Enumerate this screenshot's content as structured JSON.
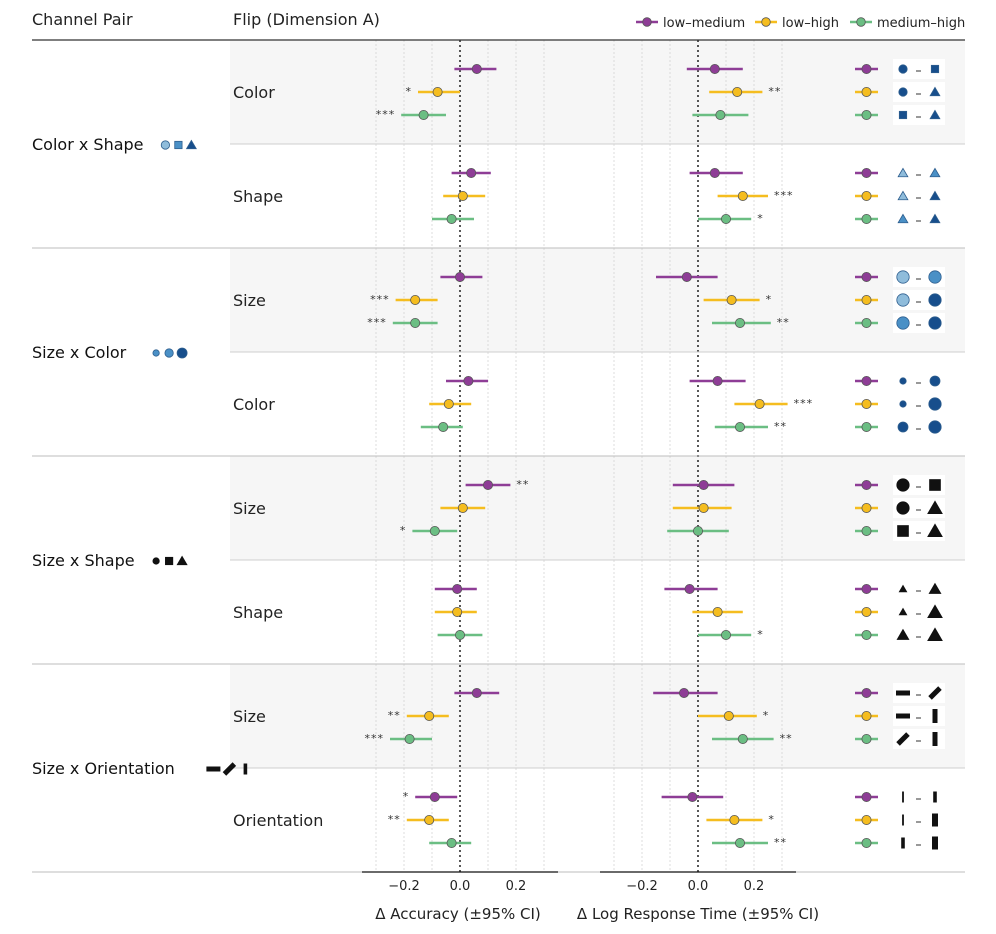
{
  "header": {
    "channel_pair": "Channel Pair",
    "flip": "Flip (Dimension A)"
  },
  "legend": [
    {
      "name": "low–medium",
      "color": "#8E3D96"
    },
    {
      "name": "low–high",
      "color": "#F5BD1F"
    },
    {
      "name": "medium–high",
      "color": "#6BBE83"
    }
  ],
  "colors": {
    "light_blue": "#8FBCDB",
    "mid_blue": "#4A90C6",
    "dark_blue": "#174E8C",
    "panel_bg": "#F6F6F6",
    "grid": "#D4D4D4"
  },
  "chart_data": {
    "type": "forest",
    "series": [
      "low–medium",
      "low–high",
      "medium–high"
    ],
    "axes": {
      "accuracy": {
        "title": "Δ Accuracy (±95% CI)",
        "ticks": [
          -0.2,
          0.0,
          0.2
        ],
        "tick_labels": [
          "−0.2",
          "0.0",
          "0.2"
        ],
        "range": [
          -0.35,
          0.35
        ]
      },
      "rt": {
        "title": "Δ Log Response Time (±95% CI)",
        "ticks": [
          -0.2,
          0.0,
          0.2
        ],
        "tick_labels": [
          "−0.2",
          "0.0",
          "0.2"
        ],
        "range": [
          -0.35,
          0.35
        ]
      }
    },
    "channel_pairs": [
      {
        "name": "Color x Shape",
        "groups": [
          {
            "flip": "Color",
            "rows": [
              {
                "acc": 0.06,
                "acc_ci": [
                  -0.02,
                  0.13
                ],
                "acc_sig": "",
                "rt": 0.06,
                "rt_ci": [
                  -0.04,
                  0.16
                ],
                "rt_sig": "",
                "levels": [
                  "sm-circle-dark",
                  "sm-square-dark"
                ]
              },
              {
                "acc": -0.08,
                "acc_ci": [
                  -0.15,
                  0.0
                ],
                "acc_sig": "*",
                "rt": 0.14,
                "rt_ci": [
                  0.04,
                  0.23
                ],
                "rt_sig": "**",
                "levels": [
                  "sm-circle-dark",
                  "sm-triangle-dark"
                ]
              },
              {
                "acc": -0.13,
                "acc_ci": [
                  -0.21,
                  -0.05
                ],
                "acc_sig": "***",
                "rt": 0.08,
                "rt_ci": [
                  -0.02,
                  0.18
                ],
                "rt_sig": "",
                "levels": [
                  "sm-square-dark",
                  "sm-triangle-dark"
                ]
              }
            ]
          },
          {
            "flip": "Shape",
            "rows": [
              {
                "acc": 0.04,
                "acc_ci": [
                  -0.03,
                  0.11
                ],
                "acc_sig": "",
                "rt": 0.06,
                "rt_ci": [
                  -0.03,
                  0.16
                ],
                "rt_sig": "",
                "levels": [
                  "sm-triangle-light",
                  "sm-triangle-mid"
                ]
              },
              {
                "acc": 0.01,
                "acc_ci": [
                  -0.06,
                  0.09
                ],
                "acc_sig": "",
                "rt": 0.16,
                "rt_ci": [
                  0.07,
                  0.25
                ],
                "rt_sig": "***",
                "levels": [
                  "sm-triangle-light",
                  "sm-triangle-dark"
                ]
              },
              {
                "acc": -0.03,
                "acc_ci": [
                  -0.1,
                  0.05
                ],
                "acc_sig": "",
                "rt": 0.1,
                "rt_ci": [
                  0.0,
                  0.19
                ],
                "rt_sig": "*",
                "levels": [
                  "sm-triangle-mid",
                  "sm-triangle-dark"
                ]
              }
            ]
          }
        ]
      },
      {
        "name": "Size x Color",
        "groups": [
          {
            "flip": "Size",
            "rows": [
              {
                "acc": 0.0,
                "acc_ci": [
                  -0.07,
                  0.08
                ],
                "acc_sig": "",
                "rt": -0.04,
                "rt_ci": [
                  -0.15,
                  0.07
                ],
                "rt_sig": "",
                "levels": [
                  "lg-circle-light",
                  "lg-circle-mid"
                ]
              },
              {
                "acc": -0.16,
                "acc_ci": [
                  -0.23,
                  -0.08
                ],
                "acc_sig": "***",
                "rt": 0.12,
                "rt_ci": [
                  0.02,
                  0.22
                ],
                "rt_sig": "*",
                "levels": [
                  "lg-circle-light",
                  "lg-circle-dark"
                ]
              },
              {
                "acc": -0.16,
                "acc_ci": [
                  -0.24,
                  -0.08
                ],
                "acc_sig": "***",
                "rt": 0.15,
                "rt_ci": [
                  0.05,
                  0.26
                ],
                "rt_sig": "**",
                "levels": [
                  "lg-circle-mid",
                  "lg-circle-dark"
                ]
              }
            ]
          },
          {
            "flip": "Color",
            "rows": [
              {
                "acc": 0.03,
                "acc_ci": [
                  -0.05,
                  0.1
                ],
                "acc_sig": "",
                "rt": 0.07,
                "rt_ci": [
                  -0.03,
                  0.17
                ],
                "rt_sig": "",
                "levels": [
                  "xs-circle-dark",
                  "md-circle-dark"
                ]
              },
              {
                "acc": -0.04,
                "acc_ci": [
                  -0.11,
                  0.04
                ],
                "acc_sig": "",
                "rt": 0.22,
                "rt_ci": [
                  0.13,
                  0.32
                ],
                "rt_sig": "***",
                "levels": [
                  "xs-circle-dark",
                  "lg-circle-dark"
                ]
              },
              {
                "acc": -0.06,
                "acc_ci": [
                  -0.14,
                  0.01
                ],
                "acc_sig": "",
                "rt": 0.15,
                "rt_ci": [
                  0.06,
                  0.25
                ],
                "rt_sig": "**",
                "levels": [
                  "md-circle-dark",
                  "lg-circle-dark"
                ]
              }
            ]
          }
        ]
      },
      {
        "name": "Size x Shape",
        "groups": [
          {
            "flip": "Size",
            "rows": [
              {
                "acc": 0.1,
                "acc_ci": [
                  0.02,
                  0.18
                ],
                "acc_sig": "**",
                "rt": 0.02,
                "rt_ci": [
                  -0.09,
                  0.13
                ],
                "rt_sig": "",
                "levels": [
                  "lg-circle-black",
                  "lg-square-black"
                ]
              },
              {
                "acc": 0.01,
                "acc_ci": [
                  -0.07,
                  0.09
                ],
                "acc_sig": "",
                "rt": 0.02,
                "rt_ci": [
                  -0.09,
                  0.12
                ],
                "rt_sig": "",
                "levels": [
                  "lg-circle-black",
                  "lg-triangle-black"
                ]
              },
              {
                "acc": -0.09,
                "acc_ci": [
                  -0.17,
                  -0.01
                ],
                "acc_sig": "*",
                "rt": 0.0,
                "rt_ci": [
                  -0.11,
                  0.11
                ],
                "rt_sig": "",
                "levels": [
                  "lg-square-black",
                  "lg-triangle-black"
                ]
              }
            ]
          },
          {
            "flip": "Shape",
            "rows": [
              {
                "acc": -0.01,
                "acc_ci": [
                  -0.09,
                  0.06
                ],
                "acc_sig": "",
                "rt": -0.03,
                "rt_ci": [
                  -0.12,
                  0.07
                ],
                "rt_sig": "",
                "levels": [
                  "xs-triangle-black",
                  "md-triangle-black"
                ]
              },
              {
                "acc": -0.01,
                "acc_ci": [
                  -0.09,
                  0.06
                ],
                "acc_sig": "",
                "rt": 0.07,
                "rt_ci": [
                  -0.02,
                  0.16
                ],
                "rt_sig": "",
                "levels": [
                  "xs-triangle-black",
                  "lg-triangle-black"
                ]
              },
              {
                "acc": 0.0,
                "acc_ci": [
                  -0.08,
                  0.08
                ],
                "acc_sig": "",
                "rt": 0.1,
                "rt_ci": [
                  0.0,
                  0.19
                ],
                "rt_sig": "*",
                "levels": [
                  "md-triangle-black",
                  "lg-triangle-black"
                ]
              }
            ]
          }
        ]
      },
      {
        "name": "Size x Orientation",
        "groups": [
          {
            "flip": "Size",
            "rows": [
              {
                "acc": 0.06,
                "acc_ci": [
                  -0.02,
                  0.14
                ],
                "acc_sig": "",
                "rt": -0.05,
                "rt_ci": [
                  -0.16,
                  0.07
                ],
                "rt_sig": "",
                "levels": [
                  "bar-horizontal",
                  "bar-diagonal"
                ]
              },
              {
                "acc": -0.11,
                "acc_ci": [
                  -0.19,
                  -0.04
                ],
                "acc_sig": "**",
                "rt": 0.11,
                "rt_ci": [
                  0.0,
                  0.21
                ],
                "rt_sig": "*",
                "levels": [
                  "bar-horizontal",
                  "bar-vertical"
                ]
              },
              {
                "acc": -0.18,
                "acc_ci": [
                  -0.25,
                  -0.1
                ],
                "acc_sig": "***",
                "rt": 0.16,
                "rt_ci": [
                  0.05,
                  0.27
                ],
                "rt_sig": "**",
                "levels": [
                  "bar-diagonal",
                  "bar-vertical"
                ]
              }
            ]
          },
          {
            "flip": "Orientation",
            "rows": [
              {
                "acc": -0.09,
                "acc_ci": [
                  -0.16,
                  -0.01
                ],
                "acc_sig": "*",
                "rt": -0.02,
                "rt_ci": [
                  -0.13,
                  0.09
                ],
                "rt_sig": "",
                "levels": [
                  "thin-vertical",
                  "thick-vertical"
                ]
              },
              {
                "acc": -0.11,
                "acc_ci": [
                  -0.19,
                  -0.04
                ],
                "acc_sig": "**",
                "rt": 0.13,
                "rt_ci": [
                  0.03,
                  0.23
                ],
                "rt_sig": "*",
                "levels": [
                  "thin-vertical",
                  "xthick-vertical"
                ]
              },
              {
                "acc": -0.03,
                "acc_ci": [
                  -0.11,
                  0.04
                ],
                "acc_sig": "",
                "rt": 0.15,
                "rt_ci": [
                  0.05,
                  0.25
                ],
                "rt_sig": "**",
                "levels": [
                  "thick-vertical",
                  "xthick-vertical"
                ]
              }
            ]
          }
        ]
      }
    ]
  }
}
